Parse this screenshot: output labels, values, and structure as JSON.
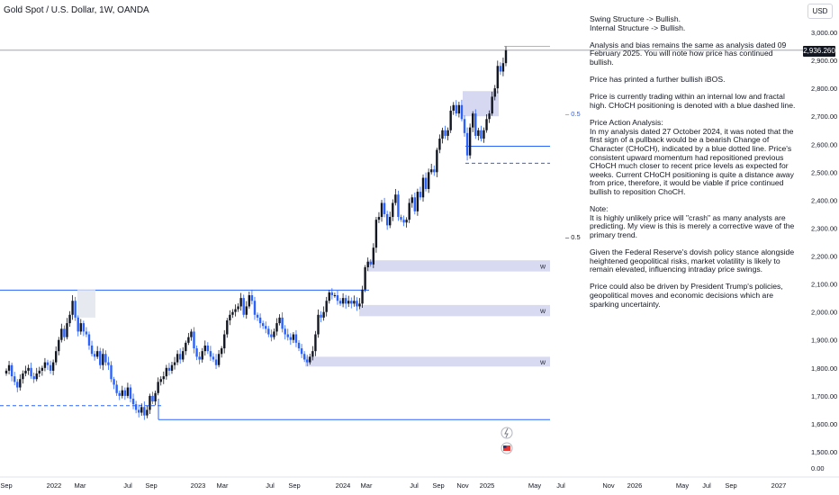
{
  "header": {
    "title": "Gold Spot / U.S. Dollar, 1W, OANDA",
    "currency": "USD",
    "last_price": "2,936.260"
  },
  "analysis": {
    "paragraphs": [
      "Swing Structure -> Bullish.\nInternal Structure -> Bullish.",
      "Analysis and bias remains the same as analysis dated 09 February 2025.  You will note how price has continued bullish.",
      "Price has printed a further bullish iBOS.",
      "Price is currently trading within an internal low and fractal high.  CHoCH positioning is denoted with a blue dashed line.",
      "Price Action Analysis:\nIn my analysis dated 27 October 2024, it was noted that the first sign of a pullback would be a bearish Change of Character (CHoCH), indicated by a blue dotted line. Price's consistent upward momentum had repositioned previous CHoCH much closer to recent price levels as expected for weeks. Current CHoCH positioning is quite a distance away from price, therefore, it would be viable if price continued bullish to reposition ChoCH.",
      "Note:\nIt is highly unlikely price will \"crash\" as many analysts are predicting.  My view is this is merely a corrective wave of the primary trend.",
      "Given the Federal Reserve's dovish policy stance alongside heightened geopolitical risks, market volatility is likely to remain elevated, influencing intraday price swings.",
      "Price could also be driven by President Trump's policies, geopolitical moves and economic decisions which are sparking uncertainty."
    ]
  },
  "chart_data": {
    "type": "candlestick",
    "title": "Gold Spot / U.S. Dollar, 1W, OANDA",
    "y_axis": {
      "ticks": [
        "3,000.00",
        "2,900.00",
        "2,800.00",
        "2,700.00",
        "2,600.00",
        "2,500.00",
        "2,400.00",
        "2,300.00",
        "2,200.00",
        "2,100.00",
        "2,000.00",
        "1,900.00",
        "1,800.00",
        "1,700.00",
        "1,600.00",
        "1,500.00",
        "0.00"
      ],
      "tick_values": [
        3000,
        2900,
        2800,
        2700,
        2600,
        2500,
        2400,
        2300,
        2200,
        2100,
        2000,
        1900,
        1800,
        1700,
        1600,
        1500
      ],
      "range": [
        1480,
        3050
      ]
    },
    "x_axis": {
      "ticks": [
        "Sep",
        "2022",
        "Mar",
        "Jul",
        "Sep",
        "2023",
        "Mar",
        "Jul",
        "Sep",
        "2024",
        "Mar",
        "Jul",
        "Sep",
        "Nov",
        "2025",
        "May",
        "Jul",
        "Nov",
        "2026",
        "May",
        "Jul",
        "Sep",
        "2027"
      ]
    },
    "bull_color": "#131722",
    "bear_color": "#2962ff",
    "last_price": 2936.26,
    "fib_labels": [
      {
        "text": "0.5",
        "price": 2710,
        "color": "#2962ff"
      },
      {
        "text": "0.5",
        "price": 2270,
        "color": "#131722"
      }
    ],
    "levels": [
      {
        "name": "upper-range-line",
        "price": 2950,
        "from": "2025",
        "color": "#b2b5be"
      },
      {
        "name": "internal-low-line",
        "price": 2593,
        "from": "Nov",
        "color": "#2962ff"
      },
      {
        "name": "choch-dashed-line",
        "price": 2532,
        "from": "Nov",
        "color": "#2962ff",
        "dashed": true
      },
      {
        "name": "previous-high-line",
        "price": 2078,
        "from": "Sep",
        "color": "#2962ff"
      },
      {
        "name": "previous-low-dashed-line",
        "price": 1665,
        "from": "Sep",
        "color": "#2962ff",
        "dashed": true
      },
      {
        "name": "swing-low-line",
        "price": 1615,
        "from": "Sep",
        "color": "#2962ff"
      },
      {
        "name": "current-price-line",
        "price": 2936.26,
        "from": "Sep",
        "color": "#9598a1"
      }
    ],
    "zones": [
      {
        "label": "W",
        "top": 2185,
        "bottom": 2145
      },
      {
        "label": "W",
        "top": 2025,
        "bottom": 1985
      },
      {
        "label": "W",
        "top": 1840,
        "bottom": 1805
      }
    ],
    "closes": [
      1790,
      1810,
      1770,
      1750,
      1730,
      1760,
      1780,
      1790,
      1800,
      1770,
      1760,
      1780,
      1790,
      1800,
      1820,
      1810,
      1790,
      1820,
      1860,
      1900,
      1940,
      1910,
      1960,
      1990,
      2040,
      1980,
      1930,
      1960,
      1930,
      1920,
      1880,
      1850,
      1840,
      1860,
      1810,
      1850,
      1820,
      1810,
      1760,
      1740,
      1710,
      1700,
      1720,
      1700,
      1730,
      1690,
      1670,
      1650,
      1640,
      1660,
      1630,
      1650,
      1700,
      1680,
      1710,
      1750,
      1760,
      1770,
      1800,
      1790,
      1810,
      1820,
      1850,
      1830,
      1860,
      1890,
      1910,
      1930,
      1870,
      1840,
      1830,
      1860,
      1880,
      1860,
      1840,
      1830,
      1810,
      1850,
      1870,
      1920,
      1970,
      1990,
      2000,
      2010,
      2020,
      2050,
      1990,
      2020,
      2060,
      2040,
      1990,
      1980,
      1960,
      1950,
      1940,
      1920,
      1910,
      1930,
      1960,
      1980,
      1940,
      1920,
      1910,
      1900,
      1920,
      1890,
      1870,
      1850,
      1830,
      1820,
      1840,
      1860,
      1920,
      1990,
      1980,
      2000,
      2040,
      2070,
      2060,
      2060,
      2040,
      2030,
      2050,
      2030,
      2040,
      2030,
      2040,
      2020,
      2030,
      2080,
      2160,
      2180,
      2170,
      2230,
      2330,
      2340,
      2390,
      2350,
      2310,
      2340,
      2390,
      2420,
      2340,
      2330,
      2320,
      2330,
      2390,
      2410,
      2360,
      2430,
      2410,
      2480,
      2440,
      2500,
      2510,
      2500,
      2580,
      2620,
      2650,
      2630,
      2650,
      2720,
      2740,
      2710,
      2740,
      2690,
      2640,
      2560,
      2660,
      2710,
      2630,
      2650,
      2620,
      2650,
      2690,
      2710,
      2770,
      2800,
      2880,
      2860,
      2890,
      2936
    ]
  }
}
